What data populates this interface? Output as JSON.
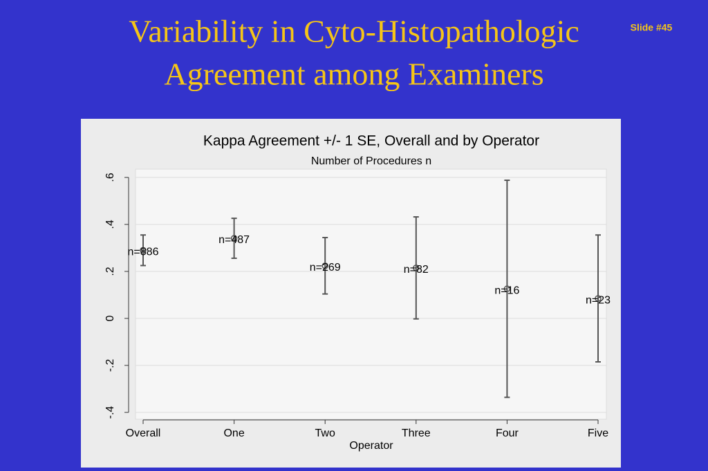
{
  "slide_title": [
    "Variability in Cyto-Histopathologic",
    "Agreement among Examiners"
  ],
  "slide_number": "Slide #45",
  "chart_data": {
    "type": "errorbar",
    "title": "Kappa Agreement +/- 1 SE, Overall and by Operator",
    "subtitle": "Number of Procedures n",
    "x_label": "Operator",
    "categories": [
      "Overall",
      "One",
      "Two",
      "Three",
      "Four",
      "Five"
    ],
    "values": [
      0.29,
      0.341,
      0.224,
      0.215,
      0.126,
      0.085
    ],
    "errors": [
      0.065,
      0.085,
      0.12,
      0.217,
      0.462,
      0.27
    ],
    "sample_labels": [
      "n=886",
      "n=487",
      "n=269",
      "n=82",
      "n=16",
      "n=23"
    ],
    "ylim": [
      -0.429,
      0.635
    ],
    "yticks": [
      {
        "value": -0.4,
        "label": "-.4"
      },
      {
        "value": -0.2,
        "label": "-.2"
      },
      0,
      {
        "value": 0.2,
        "label": ".2"
      },
      {
        "value": 0.4,
        "label": ".4"
      },
      {
        "value": 0.6,
        "label": ".6"
      }
    ],
    "color": "#555555",
    "grid": true
  }
}
